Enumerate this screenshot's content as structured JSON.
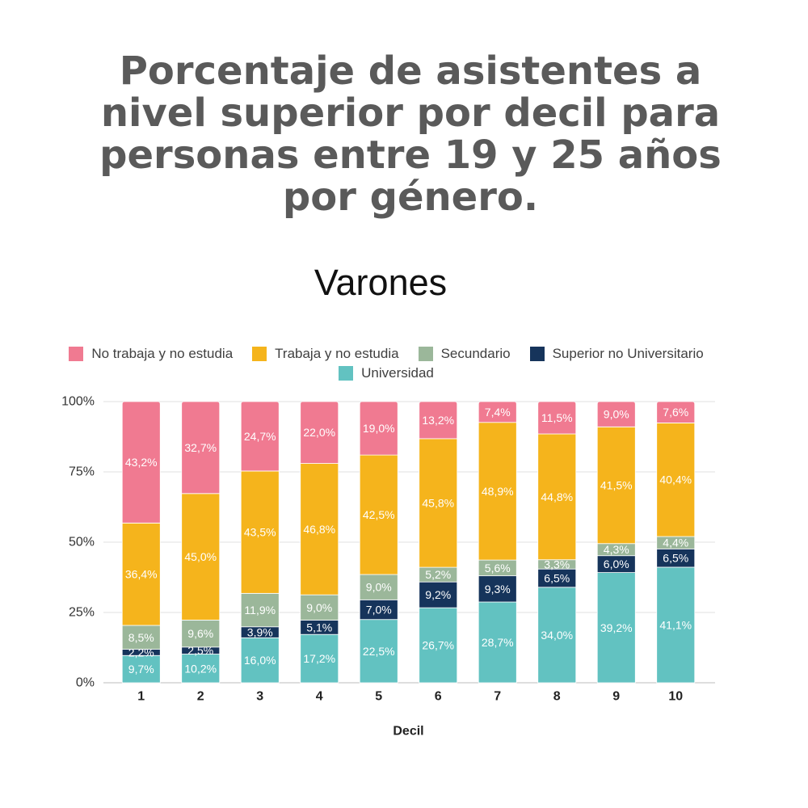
{
  "chart_data": {
    "type": "bar",
    "stacked": true,
    "title_lines": [
      "Porcentaje de asistentes a",
      "nivel superior por decil para",
      "personas entre 19 y 25 años",
      "por género."
    ],
    "subtitle": "Varones",
    "xlabel": "Decil",
    "ylabel": "",
    "categories": [
      "1",
      "2",
      "3",
      "4",
      "5",
      "6",
      "7",
      "8",
      "9",
      "10"
    ],
    "ylim": [
      0,
      100
    ],
    "yticks": [
      0,
      25,
      50,
      75,
      100
    ],
    "ytick_labels": [
      "0%",
      "25%",
      "50%",
      "75%",
      "100%"
    ],
    "grid": true,
    "legend_position": "top",
    "series": [
      {
        "name": "No trabaja y no estudia",
        "color": "#f07a91",
        "values": [
          43.2,
          32.7,
          24.7,
          22.0,
          19.0,
          13.2,
          7.4,
          11.5,
          9.0,
          7.6
        ],
        "labels": [
          "43,2%",
          "32,7%",
          "24,7%",
          "22,0%",
          "19,0%",
          "13,2%",
          "7,4%",
          "11,5%",
          "9,0%",
          "7,6%"
        ]
      },
      {
        "name": "Trabaja y no estudia",
        "color": "#f5b41c",
        "values": [
          36.4,
          45.0,
          43.5,
          46.8,
          42.5,
          45.8,
          48.9,
          44.8,
          41.5,
          40.4
        ],
        "labels": [
          "36,4%",
          "45,0%",
          "43,5%",
          "46,8%",
          "42,5%",
          "45,8%",
          "48,9%",
          "44,8%",
          "41,5%",
          "40,4%"
        ]
      },
      {
        "name": "Secundario",
        "color": "#9bb79a",
        "values": [
          8.5,
          9.6,
          11.9,
          9.0,
          9.0,
          5.2,
          5.6,
          3.3,
          4.3,
          4.4
        ],
        "labels": [
          "8,5%",
          "9,6%",
          "11,9%",
          "9,0%",
          "9,0%",
          "5,2%",
          "5,6%",
          "3,3%",
          "4,3%",
          "4,4%"
        ]
      },
      {
        "name": "Superior no Universitario",
        "color": "#16345b",
        "values": [
          2.2,
          2.5,
          3.9,
          5.1,
          7.0,
          9.2,
          9.3,
          6.5,
          6.0,
          6.5
        ],
        "labels": [
          "2,2%",
          "2,5%",
          "3,9%",
          "5,1%",
          "7,0%",
          "9,2%",
          "9,3%",
          "6,5%",
          "6,0%",
          "6,5%"
        ]
      },
      {
        "name": "Universidad",
        "color": "#62c2c1",
        "values": [
          9.7,
          10.2,
          16.0,
          17.2,
          22.5,
          26.7,
          28.7,
          34.0,
          39.2,
          41.1
        ],
        "labels": [
          "9,7%",
          "10,2%",
          "16,0%",
          "17,2%",
          "22,5%",
          "26,7%",
          "28,7%",
          "34,0%",
          "39,2%",
          "41,1%"
        ]
      }
    ]
  }
}
